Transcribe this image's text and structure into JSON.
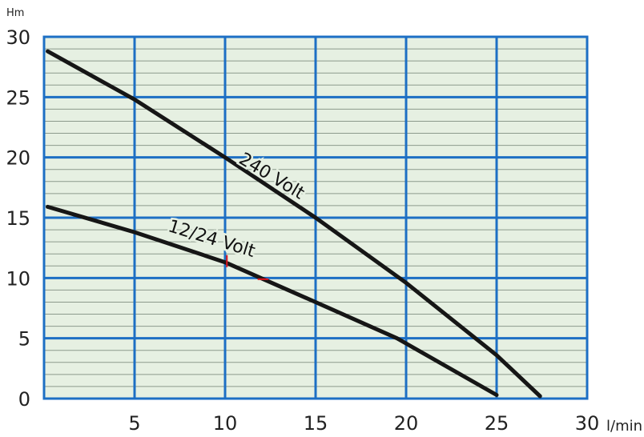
{
  "chart_data": {
    "type": "line",
    "title": "",
    "xlabel": "l/min",
    "ylabel": "Hm",
    "xlim": [
      0,
      30
    ],
    "ylim": [
      0,
      30
    ],
    "x_ticks": [
      "5",
      "10",
      "15",
      "20",
      "25",
      "30"
    ],
    "y_ticks": [
      "0",
      "5",
      "10",
      "15",
      "20",
      "25",
      "30"
    ],
    "grid": true,
    "colors": {
      "plot_background": "#e6f0e2",
      "major_grid": "#1d6fc4",
      "minor_grid": "#8c9a8c",
      "series_line": "#161616",
      "accent_mark": "#e0141e"
    },
    "series": [
      {
        "name": "240 Volt",
        "x": [
          0.2,
          5,
          10,
          15,
          20,
          25,
          27.4
        ],
        "y": [
          28.8,
          24.8,
          20,
          15,
          9.6,
          3.6,
          0.2
        ]
      },
      {
        "name": "12/24 Volt",
        "x": [
          0.2,
          5,
          10,
          15,
          19.5,
          25
        ],
        "y": [
          15.9,
          13.8,
          11.3,
          8,
          5,
          0.3
        ]
      }
    ]
  }
}
